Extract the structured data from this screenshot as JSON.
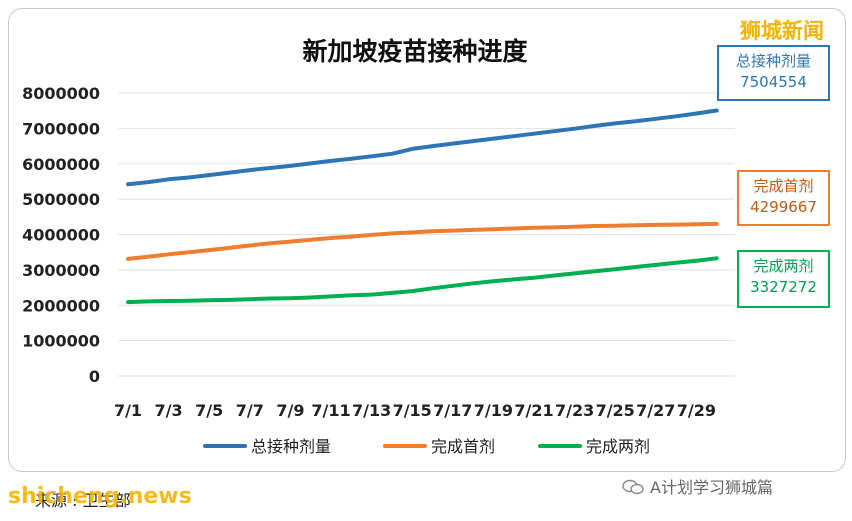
{
  "brand": "狮城新闻",
  "source_text": "来源 : 卫生部",
  "watermark": "shicheng.news",
  "account": "A计划学习狮城篇",
  "callouts": {
    "total": {
      "label": "总接种剂量",
      "value": "7504554",
      "color": "#2e75b6"
    },
    "first": {
      "label": "完成首剂",
      "value": "4299667",
      "color": "#ed7d31"
    },
    "second": {
      "label": "完成两剂",
      "value": "3327272",
      "color": "#00b050"
    }
  },
  "chart_data": {
    "type": "line",
    "title": "新加坡疫苗接种进度",
    "xlabel": "",
    "ylabel": "",
    "ylim": [
      0,
      8000000
    ],
    "yticks": [
      0,
      1000000,
      2000000,
      3000000,
      4000000,
      5000000,
      6000000,
      7000000,
      8000000
    ],
    "ytick_labels": [
      "0",
      "1000000",
      "2000000",
      "3000000",
      "4000000",
      "5000000",
      "6000000",
      "7000000",
      "8000000"
    ],
    "categories": [
      "7/1",
      "7/2",
      "7/3",
      "7/4",
      "7/5",
      "7/6",
      "7/7",
      "7/8",
      "7/9",
      "7/10",
      "7/11",
      "7/12",
      "7/13",
      "7/14",
      "7/15",
      "7/16",
      "7/17",
      "7/18",
      "7/19",
      "7/20",
      "7/21",
      "7/22",
      "7/23",
      "7/24",
      "7/25",
      "7/26",
      "7/27",
      "7/28",
      "7/29",
      "7/30"
    ],
    "xtick_labels": [
      "7/1",
      "7/3",
      "7/5",
      "7/7",
      "7/9",
      "7/11",
      "7/13",
      "7/15",
      "7/17",
      "7/19",
      "7/21",
      "7/23",
      "7/25",
      "7/27",
      "7/29"
    ],
    "grid": true,
    "legend_position": "bottom",
    "series": [
      {
        "name": "总接种剂量",
        "color": "#2e75b6",
        "values": [
          5420000,
          5480000,
          5560000,
          5610000,
          5680000,
          5750000,
          5820000,
          5880000,
          5940000,
          6010000,
          6080000,
          6140000,
          6210000,
          6280000,
          6420000,
          6500000,
          6570000,
          6640000,
          6710000,
          6780000,
          6850000,
          6920000,
          6990000,
          7070000,
          7140000,
          7200000,
          7270000,
          7340000,
          7420000,
          7504554
        ]
      },
      {
        "name": "完成首剂",
        "color": "#ed7d31",
        "values": [
          3310000,
          3370000,
          3440000,
          3500000,
          3560000,
          3620000,
          3690000,
          3750000,
          3800000,
          3850000,
          3900000,
          3940000,
          3990000,
          4030000,
          4060000,
          4090000,
          4110000,
          4130000,
          4150000,
          4170000,
          4190000,
          4200000,
          4220000,
          4240000,
          4250000,
          4260000,
          4270000,
          4280000,
          4290000,
          4299667
        ]
      },
      {
        "name": "完成两剂",
        "color": "#00b050",
        "values": [
          2090000,
          2110000,
          2120000,
          2130000,
          2140000,
          2150000,
          2170000,
          2190000,
          2200000,
          2220000,
          2250000,
          2280000,
          2300000,
          2350000,
          2400000,
          2480000,
          2550000,
          2620000,
          2680000,
          2730000,
          2780000,
          2840000,
          2900000,
          2960000,
          3020000,
          3080000,
          3140000,
          3200000,
          3260000,
          3327272
        ]
      }
    ]
  }
}
